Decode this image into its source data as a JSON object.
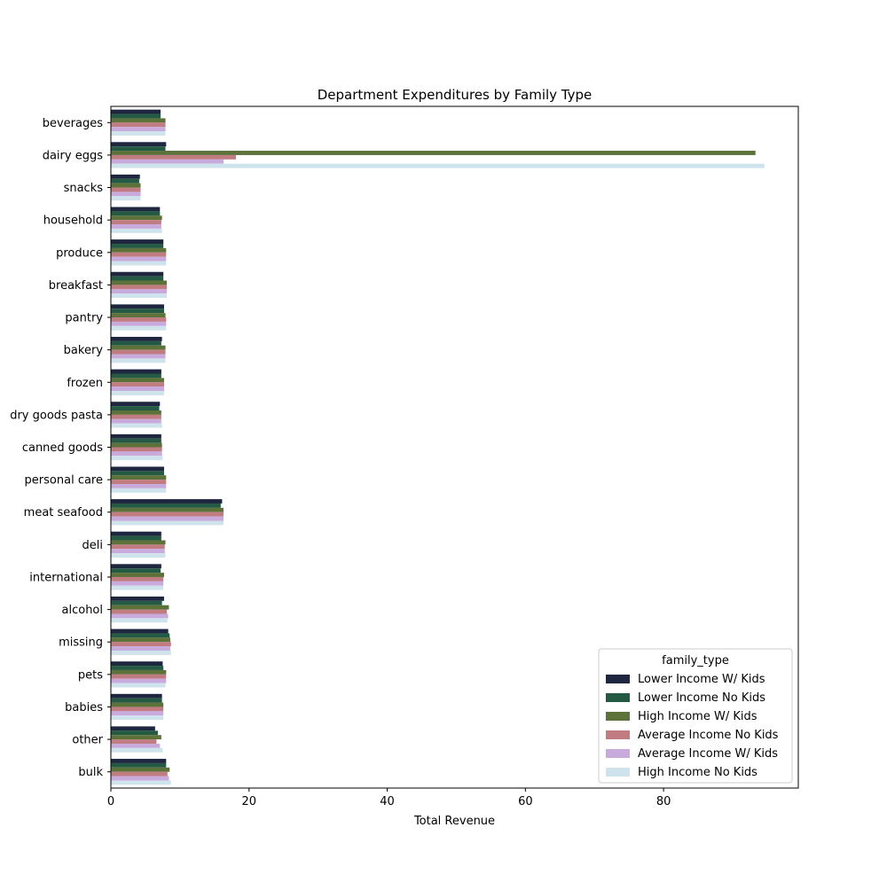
{
  "chart_data": {
    "type": "bar",
    "orientation": "horizontal",
    "title": "Department Expenditures by Family Type",
    "xlabel": "Total Revenue",
    "ylabel": "",
    "xlim": [
      0,
      99.5
    ],
    "xticks": [
      0,
      20,
      40,
      60,
      80
    ],
    "grid": false,
    "legend": {
      "title": "family_type",
      "placement": "lower-right"
    },
    "categories": [
      "beverages",
      "dairy eggs",
      "snacks",
      "household",
      "produce",
      "breakfast",
      "pantry",
      "bakery",
      "frozen",
      "dry goods pasta",
      "canned goods",
      "personal care",
      "meat seafood",
      "deli",
      "international",
      "alcohol",
      "missing",
      "pets",
      "babies",
      "other",
      "bulk"
    ],
    "series": [
      {
        "name": "Lower Income W/ Kids",
        "color": "#1e2640",
        "values": [
          7.2,
          8.0,
          4.2,
          7.1,
          7.6,
          7.6,
          7.7,
          7.4,
          7.3,
          7.1,
          7.3,
          7.7,
          16.1,
          7.3,
          7.3,
          7.7,
          8.3,
          7.5,
          7.4,
          6.4,
          8.0
        ]
      },
      {
        "name": "Lower Income No Kids",
        "color": "#245a44",
        "values": [
          7.2,
          7.9,
          4.1,
          7.1,
          7.6,
          7.6,
          7.7,
          7.3,
          7.3,
          7.0,
          7.3,
          7.7,
          15.9,
          7.3,
          7.2,
          7.4,
          8.5,
          7.6,
          7.4,
          6.8,
          8.0
        ]
      },
      {
        "name": "High Income W/ Kids",
        "color": "#5d713b",
        "values": [
          7.9,
          93.3,
          4.3,
          7.4,
          8.0,
          8.1,
          7.9,
          7.9,
          7.7,
          7.3,
          7.4,
          8.0,
          16.3,
          7.9,
          7.7,
          8.4,
          8.6,
          8.0,
          7.6,
          7.3,
          8.5
        ]
      },
      {
        "name": "Average Income No Kids",
        "color": "#c07c80",
        "values": [
          7.9,
          18.1,
          4.3,
          7.3,
          8.0,
          8.1,
          8.0,
          7.9,
          7.7,
          7.3,
          7.4,
          8.0,
          16.3,
          7.8,
          7.6,
          8.1,
          8.7,
          8.0,
          7.6,
          6.6,
          8.2
        ]
      },
      {
        "name": "Average Income W/ Kids",
        "color": "#c8aadc",
        "values": [
          7.9,
          16.3,
          4.3,
          7.3,
          8.0,
          8.1,
          8.0,
          7.9,
          7.7,
          7.3,
          7.4,
          8.0,
          16.3,
          7.8,
          7.6,
          8.3,
          8.6,
          8.0,
          7.6,
          7.1,
          8.4
        ]
      },
      {
        "name": "High Income No Kids",
        "color": "#cfe3ec",
        "values": [
          7.9,
          94.6,
          4.3,
          7.4,
          8.0,
          8.1,
          8.0,
          7.9,
          7.7,
          7.4,
          7.5,
          8.0,
          16.3,
          7.9,
          7.6,
          8.2,
          8.7,
          7.9,
          7.6,
          7.5,
          8.7
        ]
      }
    ]
  }
}
